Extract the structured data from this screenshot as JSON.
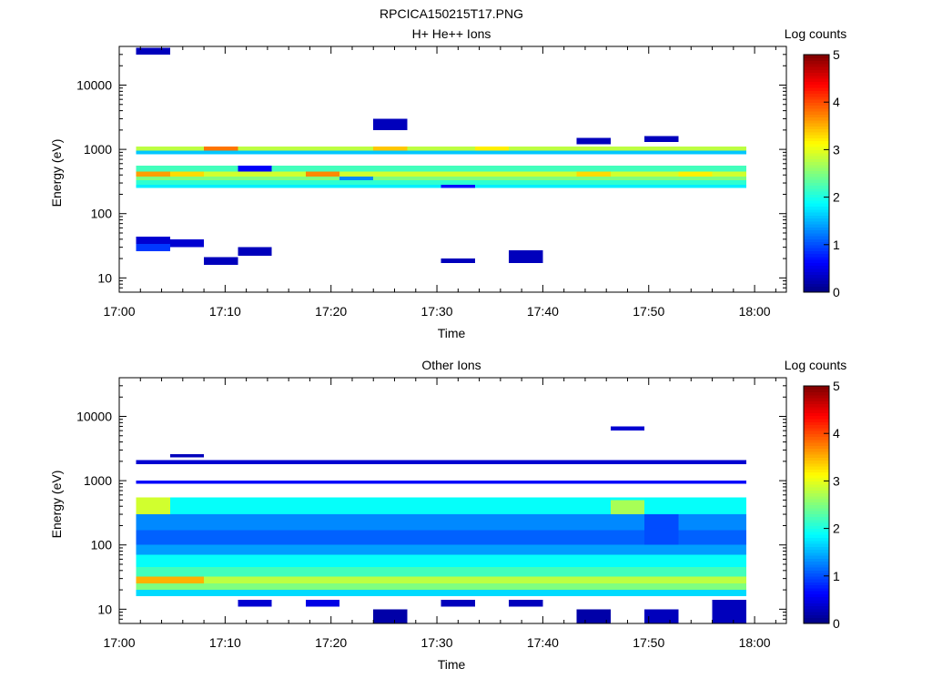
{
  "figure": {
    "title": "RPCICA150215T17.PNG"
  },
  "colorbar": {
    "label": "Log counts",
    "range": [
      0,
      5
    ],
    "ticks": [
      "0",
      "1",
      "2",
      "3",
      "4",
      "5"
    ],
    "colormap": "jet",
    "stops": [
      "#00007f",
      "#0000ff",
      "#007fff",
      "#00ffff",
      "#7fff7f",
      "#ffff00",
      "#ff7f00",
      "#ff0000",
      "#7f0000"
    ]
  },
  "chart_data": [
    {
      "type": "heatmap",
      "title": "H+ He++ Ions",
      "xlabel": "Time",
      "ylabel": "Energy (eV)",
      "yscale": "log",
      "xlim": [
        "17:00",
        "18:03"
      ],
      "ylim": [
        6,
        40000
      ],
      "x_ticks": [
        "17:00",
        "17:10",
        "17:20",
        "17:30",
        "17:40",
        "17:50",
        "18:00"
      ],
      "y_ticks": [
        "10",
        "100",
        "1000",
        "10000"
      ],
      "time_bins": [
        "17:01.6",
        "17:04.8",
        "17:08.0",
        "17:11.2",
        "17:14.4",
        "17:17.6",
        "17:20.8",
        "17:24.0",
        "17:27.2",
        "17:30.4",
        "17:33.6",
        "17:36.8",
        "17:40.0",
        "17:43.2",
        "17:46.4",
        "17:49.6",
        "17:52.8",
        "17:56.0"
      ],
      "cells": [
        {
          "t": [
            0,
            17
          ],
          "e": [
            250,
            280
          ],
          "v": 1.8
        },
        {
          "t": [
            0,
            17
          ],
          "e": [
            280,
            330
          ],
          "v": 2.1
        },
        {
          "t": [
            0,
            17
          ],
          "e": [
            330,
            380
          ],
          "v": 2.5
        },
        {
          "t": [
            0,
            17
          ],
          "e": [
            380,
            450
          ],
          "v": 2.9
        },
        {
          "t": [
            0,
            17
          ],
          "e": [
            450,
            560
          ],
          "v": 2.2
        },
        {
          "t": [
            0,
            17
          ],
          "e": [
            840,
            950
          ],
          "v": 1.6
        },
        {
          "t": [
            0,
            17
          ],
          "e": [
            950,
            1100
          ],
          "v": 2.8
        },
        {
          "t": [
            0,
            0
          ],
          "e": [
            380,
            450
          ],
          "v": 3.6
        },
        {
          "t": [
            1,
            1
          ],
          "e": [
            380,
            450
          ],
          "v": 3.3
        },
        {
          "t": [
            5,
            5
          ],
          "e": [
            380,
            450
          ],
          "v": 3.7
        },
        {
          "t": [
            13,
            13
          ],
          "e": [
            380,
            450
          ],
          "v": 3.3
        },
        {
          "t": [
            16,
            16
          ],
          "e": [
            380,
            450
          ],
          "v": 3.2
        },
        {
          "t": [
            2,
            2
          ],
          "e": [
            950,
            1100
          ],
          "v": 3.8
        },
        {
          "t": [
            7,
            7
          ],
          "e": [
            950,
            1100
          ],
          "v": 3.4
        },
        {
          "t": [
            10,
            10
          ],
          "e": [
            950,
            1100
          ],
          "v": 3.2
        },
        {
          "t": [
            3,
            3
          ],
          "e": [
            450,
            560
          ],
          "v": 0.6
        },
        {
          "t": [
            6,
            6
          ],
          "e": [
            330,
            380
          ],
          "v": 1.3
        },
        {
          "t": [
            9,
            9
          ],
          "e": [
            250,
            280
          ],
          "v": 0.7
        },
        {
          "t": [
            0,
            0
          ],
          "e": [
            26,
            34
          ],
          "v": 0.9
        },
        {
          "t": [
            0,
            0
          ],
          "e": [
            34,
            44
          ],
          "v": 0.4
        },
        {
          "t": [
            1,
            1
          ],
          "e": [
            30,
            40
          ],
          "v": 0.4
        },
        {
          "t": [
            2,
            2
          ],
          "e": [
            16,
            21
          ],
          "v": 0.3
        },
        {
          "t": [
            3,
            3
          ],
          "e": [
            22,
            30
          ],
          "v": 0.3
        },
        {
          "t": [
            9,
            9
          ],
          "e": [
            17,
            20
          ],
          "v": 0.3
        },
        {
          "t": [
            11,
            11
          ],
          "e": [
            17,
            27
          ],
          "v": 0.3
        },
        {
          "t": [
            0,
            0
          ],
          "e": [
            30000,
            38000
          ],
          "v": 0.3
        },
        {
          "t": [
            7,
            7
          ],
          "e": [
            2000,
            3000
          ],
          "v": 0.3
        },
        {
          "t": [
            15,
            15
          ],
          "e": [
            1300,
            1600
          ],
          "v": 0.3
        },
        {
          "t": [
            13,
            13
          ],
          "e": [
            1200,
            1500
          ],
          "v": 0.3
        }
      ]
    },
    {
      "type": "heatmap",
      "title": "Other Ions",
      "xlabel": "Time",
      "ylabel": "Energy (eV)",
      "yscale": "log",
      "xlim": [
        "17:00",
        "18:03"
      ],
      "ylim": [
        6,
        40000
      ],
      "x_ticks": [
        "17:00",
        "17:10",
        "17:20",
        "17:30",
        "17:40",
        "17:50",
        "18:00"
      ],
      "y_ticks": [
        "10",
        "100",
        "1000",
        "10000"
      ],
      "time_bins": [
        "17:01.6",
        "17:04.8",
        "17:08.0",
        "17:11.2",
        "17:14.4",
        "17:17.6",
        "17:20.8",
        "17:24.0",
        "17:27.2",
        "17:30.4",
        "17:33.6",
        "17:36.8",
        "17:40.0",
        "17:43.2",
        "17:46.4",
        "17:49.6",
        "17:52.8",
        "17:56.0"
      ],
      "cells": [
        {
          "t": [
            0,
            17
          ],
          "e": [
            16,
            20
          ],
          "v": 1.7
        },
        {
          "t": [
            0,
            17
          ],
          "e": [
            20,
            25
          ],
          "v": 2.5
        },
        {
          "t": [
            0,
            17
          ],
          "e": [
            25,
            32
          ],
          "v": 2.8
        },
        {
          "t": [
            0,
            17
          ],
          "e": [
            32,
            45
          ],
          "v": 2.2
        },
        {
          "t": [
            0,
            17
          ],
          "e": [
            45,
            70
          ],
          "v": 1.9
        },
        {
          "t": [
            0,
            17
          ],
          "e": [
            70,
            100
          ],
          "v": 1.4
        },
        {
          "t": [
            0,
            17
          ],
          "e": [
            100,
            170
          ],
          "v": 1.1
        },
        {
          "t": [
            0,
            17
          ],
          "e": [
            170,
            300
          ],
          "v": 1.3
        },
        {
          "t": [
            0,
            17
          ],
          "e": [
            300,
            550
          ],
          "v": 1.9
        },
        {
          "t": [
            0,
            1
          ],
          "e": [
            25,
            32
          ],
          "v": 3.5
        },
        {
          "t": [
            0,
            0
          ],
          "e": [
            300,
            550
          ],
          "v": 2.9
        },
        {
          "t": [
            15,
            15
          ],
          "e": [
            100,
            300
          ],
          "v": 1.0
        },
        {
          "t": [
            14,
            14
          ],
          "e": [
            300,
            500
          ],
          "v": 2.7
        },
        {
          "t": [
            0,
            17
          ],
          "e": [
            900,
            1000
          ],
          "v": 0.6
        },
        {
          "t": [
            0,
            17
          ],
          "e": [
            1800,
            2100
          ],
          "v": 0.4
        },
        {
          "t": [
            1,
            1
          ],
          "e": [
            2300,
            2600
          ],
          "v": 0.3
        },
        {
          "t": [
            3,
            3
          ],
          "e": [
            11,
            14
          ],
          "v": 0.4
        },
        {
          "t": [
            5,
            5
          ],
          "e": [
            11,
            14
          ],
          "v": 0.5
        },
        {
          "t": [
            7,
            7
          ],
          "e": [
            6,
            10
          ],
          "v": 0.2
        },
        {
          "t": [
            9,
            9
          ],
          "e": [
            11,
            14
          ],
          "v": 0.3
        },
        {
          "t": [
            11,
            11
          ],
          "e": [
            11,
            14
          ],
          "v": 0.3
        },
        {
          "t": [
            13,
            13
          ],
          "e": [
            6,
            10
          ],
          "v": 0.2
        },
        {
          "t": [
            15,
            15
          ],
          "e": [
            6,
            10
          ],
          "v": 0.3
        },
        {
          "t": [
            17,
            17
          ],
          "e": [
            6,
            14
          ],
          "v": 0.3
        },
        {
          "t": [
            14,
            14
          ],
          "e": [
            6000,
            7000
          ],
          "v": 0.4
        }
      ]
    }
  ]
}
